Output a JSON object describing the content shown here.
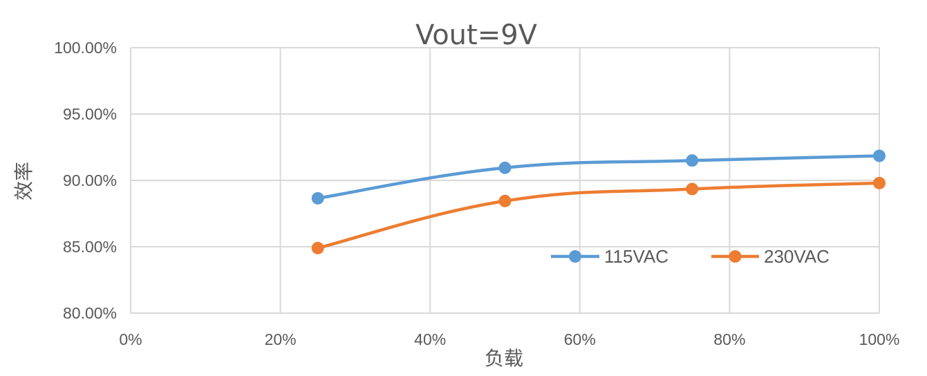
{
  "colors": {
    "series_115": "#5B9BD5",
    "series_230": "#ED7D31",
    "grid": "#D9D9D9",
    "text": "#595959"
  },
  "chart_data": {
    "type": "line",
    "title": "Vout=9V",
    "xlabel": "负载",
    "ylabel": "效率",
    "xlim": [
      0,
      100
    ],
    "ylim": [
      80,
      100
    ],
    "x_ticks": [
      "0%",
      "20%",
      "40%",
      "60%",
      "80%",
      "100%"
    ],
    "y_ticks": [
      "80.00%",
      "85.00%",
      "90.00%",
      "95.00%",
      "100.00%"
    ],
    "grid": true,
    "legend_position": "inside-bottom-right",
    "series": [
      {
        "name": "115VAC",
        "x": [
          25,
          50,
          75,
          100
        ],
        "values": [
          88.65,
          90.95,
          91.5,
          91.85
        ]
      },
      {
        "name": "230VAC",
        "x": [
          25,
          50,
          75,
          100
        ],
        "values": [
          84.9,
          88.45,
          89.35,
          89.8
        ]
      }
    ]
  }
}
